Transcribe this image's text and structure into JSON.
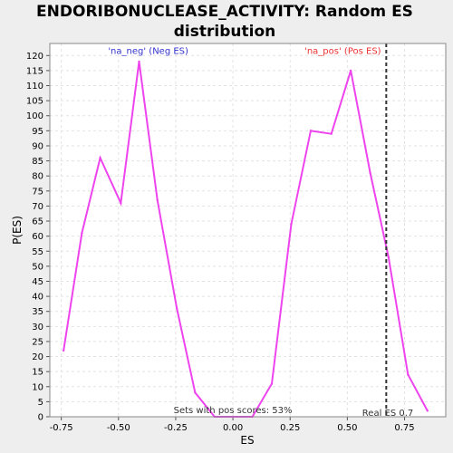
{
  "chart_data": {
    "type": "line",
    "title_line1": "ENDORIBONUCLEASE_ACTIVITY: Random ES",
    "title_line2": "distribution",
    "xlabel": "ES",
    "ylabel": "P(ES)",
    "xlim": [
      -0.8,
      0.93
    ],
    "ylim": [
      0,
      124
    ],
    "x_ticks": [
      -0.75,
      -0.5,
      -0.25,
      0.0,
      0.25,
      0.5,
      0.75
    ],
    "x_tick_labels": [
      "-0.75",
      "-0.50",
      "-0.25",
      "0.00",
      "0.25",
      "0.50",
      "0.75"
    ],
    "y_ticks": [
      0,
      5,
      10,
      15,
      20,
      25,
      30,
      35,
      40,
      45,
      50,
      55,
      60,
      65,
      70,
      75,
      80,
      85,
      90,
      95,
      100,
      105,
      110,
      115,
      120
    ],
    "grid": true,
    "series": [
      {
        "color": "#ee44ee",
        "x": [
          -0.74,
          -0.66,
          -0.58,
          -0.49,
          -0.41,
          -0.33,
          -0.245,
          -0.165,
          -0.08,
          0.0,
          0.085,
          0.17,
          0.255,
          0.34,
          0.43,
          0.515,
          0.6,
          0.68,
          0.765,
          0.85
        ],
        "y": [
          22,
          61,
          86,
          71,
          118,
          72,
          36,
          8,
          0,
          0,
          0,
          11,
          64,
          95,
          94,
          115,
          81,
          53,
          14,
          2
        ]
      }
    ],
    "annotations": {
      "neg_label": "'na_neg' (Neg ES)",
      "neg_color": "#3333cc",
      "pos_label": "'na_pos' (Pos ES)",
      "pos_color": "#ee3333",
      "sets_text": "Sets with pos scores: 53%",
      "real_es_text": "Real ES 0.7",
      "real_es_value": 0.67
    }
  }
}
